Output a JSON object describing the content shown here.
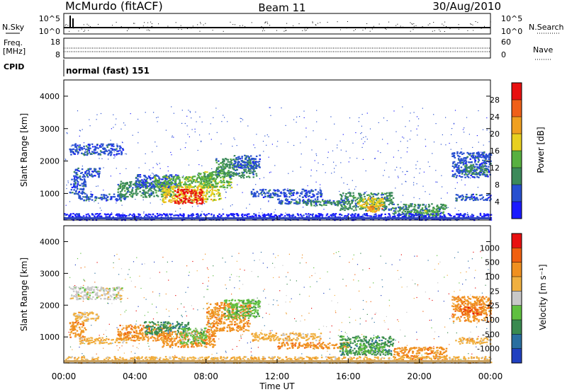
{
  "header": {
    "title": "McMurdo (fitACF)",
    "beam": "Beam 11",
    "date": "30/Aug/2010"
  },
  "strip_nsky": {
    "left_label": "N.Sky",
    "right_label": "N.Search",
    "left_ticks": [
      "10^5",
      "10^0"
    ],
    "right_ticks": [
      "10^5",
      "10^0"
    ]
  },
  "strip_freq": {
    "left_label": "Freq.",
    "left_unit": "[MHz]",
    "right_label": "Nave",
    "left_ticks": [
      "18",
      "8"
    ],
    "right_ticks": [
      "60",
      "0"
    ]
  },
  "cpid": {
    "label": "CPID",
    "value": "normal (fast) 151"
  },
  "chart_data": [
    {
      "type": "heatmap",
      "parameter": "Power",
      "ylabel": "Slant Range [km]",
      "xlabel": "Time UT",
      "ylim": [
        180,
        4500
      ],
      "xlim_hours": [
        0,
        24
      ],
      "y_ticks": [
        "1000",
        "2000",
        "3000",
        "4000"
      ],
      "x_ticks": [
        "00:00",
        "04:00",
        "08:00",
        "12:00",
        "16:00",
        "20:00",
        "00:00"
      ],
      "colorbar": {
        "label": "Power [dB]",
        "ticks": [
          "4",
          "8",
          "12",
          "16",
          "20",
          "24",
          "28"
        ],
        "colors": [
          "#1a1aff",
          "#2850d0",
          "#3c8a5a",
          "#58b040",
          "#e8d020",
          "#f0a020",
          "#f06018",
          "#e81010"
        ]
      },
      "regions": [
        {
          "t0": 0.3,
          "t1": 3.3,
          "r0": 2200,
          "r1": 2550,
          "level": 1
        },
        {
          "t0": 0.5,
          "t1": 2.0,
          "r0": 1500,
          "r1": 1800,
          "level": 1
        },
        {
          "t0": 0.3,
          "t1": 1.2,
          "r0": 1000,
          "r1": 1500,
          "level": 1
        },
        {
          "t0": 0.8,
          "t1": 3.5,
          "r0": 800,
          "r1": 1000,
          "level": 1
        },
        {
          "t0": 3.0,
          "t1": 6.0,
          "r0": 900,
          "r1": 1400,
          "level": 2
        },
        {
          "t0": 4.0,
          "t1": 6.5,
          "r0": 1200,
          "r1": 1600,
          "level": 1
        },
        {
          "t0": 5.0,
          "t1": 8.5,
          "r0": 1200,
          "r1": 1550,
          "level": 3
        },
        {
          "t0": 5.5,
          "t1": 8.8,
          "r0": 750,
          "r1": 1250,
          "level": 4
        },
        {
          "t0": 6.2,
          "t1": 7.8,
          "r0": 700,
          "r1": 1150,
          "level": 7
        },
        {
          "t0": 7.5,
          "t1": 9.5,
          "r0": 1200,
          "r1": 1700,
          "level": 3
        },
        {
          "t0": 8.5,
          "t1": 10.8,
          "r0": 1500,
          "r1": 2100,
          "level": 2
        },
        {
          "t0": 9.5,
          "t1": 11.0,
          "r0": 1800,
          "r1": 2200,
          "level": 1
        },
        {
          "t0": 10.5,
          "t1": 14.5,
          "r0": 900,
          "r1": 1150,
          "level": 1
        },
        {
          "t0": 12.0,
          "t1": 16.0,
          "r0": 700,
          "r1": 850,
          "level": 1
        },
        {
          "t0": 13.0,
          "t1": 15.5,
          "r0": 650,
          "r1": 800,
          "level": 2
        },
        {
          "t0": 15.5,
          "t1": 18.5,
          "r0": 500,
          "r1": 1050,
          "level": 2
        },
        {
          "t0": 16.5,
          "t1": 18.0,
          "r0": 600,
          "r1": 900,
          "level": 4
        },
        {
          "t0": 17.0,
          "t1": 18.0,
          "r0": 450,
          "r1": 650,
          "level": 5
        },
        {
          "t0": 18.5,
          "t1": 21.5,
          "r0": 300,
          "r1": 700,
          "level": 2
        },
        {
          "t0": 19.5,
          "t1": 21.0,
          "r0": 350,
          "r1": 500,
          "level": 3
        },
        {
          "t0": 21.8,
          "t1": 24.0,
          "r0": 1500,
          "r1": 2300,
          "level": 1
        },
        {
          "t0": 22.5,
          "t1": 23.8,
          "r0": 1600,
          "r1": 1900,
          "level": 2
        },
        {
          "t0": 22.0,
          "t1": 24.0,
          "r0": 800,
          "r1": 1000,
          "level": 1
        },
        {
          "t0": 0.0,
          "t1": 24.0,
          "r0": 200,
          "r1": 400,
          "level": 0
        }
      ]
    },
    {
      "type": "heatmap",
      "parameter": "Velocity",
      "ylabel": "Slant Range [km]",
      "xlabel": "Time UT",
      "ylim": [
        180,
        4500
      ],
      "xlim_hours": [
        0,
        24
      ],
      "y_ticks": [
        "1000",
        "2000",
        "3000",
        "4000"
      ],
      "x_ticks": [
        "00:00",
        "04:00",
        "08:00",
        "12:00",
        "16:00",
        "20:00",
        "00:00"
      ],
      "colorbar": {
        "label": "Velocity [m s⁻¹]",
        "ticks": [
          "1000",
          "500",
          "100",
          "25",
          "-25",
          "-100",
          "-500",
          "-1000"
        ],
        "colors": [
          "#2040c0",
          "#2a6fa0",
          "#3a8a50",
          "#60c040",
          "#c8c8c8",
          "#f0b040",
          "#f09020",
          "#f06010",
          "#e81010"
        ]
      },
      "regions": [
        {
          "t0": 0.3,
          "t1": 3.3,
          "r0": 2200,
          "r1": 2600,
          "level": 4
        },
        {
          "t0": 0.5,
          "t1": 2.0,
          "r0": 1500,
          "r1": 1800,
          "level": 5
        },
        {
          "t0": 0.3,
          "t1": 1.2,
          "r0": 1000,
          "r1": 1500,
          "level": 6
        },
        {
          "t0": 0.8,
          "t1": 3.5,
          "r0": 800,
          "r1": 1000,
          "level": 5
        },
        {
          "t0": 3.0,
          "t1": 6.0,
          "r0": 900,
          "r1": 1400,
          "level": 6
        },
        {
          "t0": 4.5,
          "t1": 7.0,
          "r0": 1100,
          "r1": 1500,
          "level": 2
        },
        {
          "t0": 5.5,
          "t1": 8.5,
          "r0": 700,
          "r1": 1200,
          "level": 6
        },
        {
          "t0": 6.5,
          "t1": 8.0,
          "r0": 800,
          "r1": 1300,
          "level": 3
        },
        {
          "t0": 8.0,
          "t1": 10.5,
          "r0": 1200,
          "r1": 2100,
          "level": 6
        },
        {
          "t0": 9.0,
          "t1": 11.0,
          "r0": 1600,
          "r1": 2200,
          "level": 3
        },
        {
          "t0": 10.5,
          "t1": 14.5,
          "r0": 900,
          "r1": 1150,
          "level": 5
        },
        {
          "t0": 12.0,
          "t1": 16.0,
          "r0": 650,
          "r1": 850,
          "level": 6
        },
        {
          "t0": 15.5,
          "t1": 18.5,
          "r0": 450,
          "r1": 1050,
          "level": 2
        },
        {
          "t0": 16.5,
          "t1": 18.0,
          "r0": 500,
          "r1": 800,
          "level": 3
        },
        {
          "t0": 18.5,
          "t1": 21.5,
          "r0": 300,
          "r1": 700,
          "level": 6
        },
        {
          "t0": 21.8,
          "t1": 24.0,
          "r0": 1500,
          "r1": 2300,
          "level": 6
        },
        {
          "t0": 22.2,
          "t1": 23.5,
          "r0": 1700,
          "r1": 2000,
          "level": 7
        },
        {
          "t0": 22.0,
          "t1": 24.0,
          "r0": 800,
          "r1": 1000,
          "level": 5
        },
        {
          "t0": 0.0,
          "t1": 24.0,
          "r0": 200,
          "r1": 400,
          "level": 5
        }
      ]
    }
  ]
}
